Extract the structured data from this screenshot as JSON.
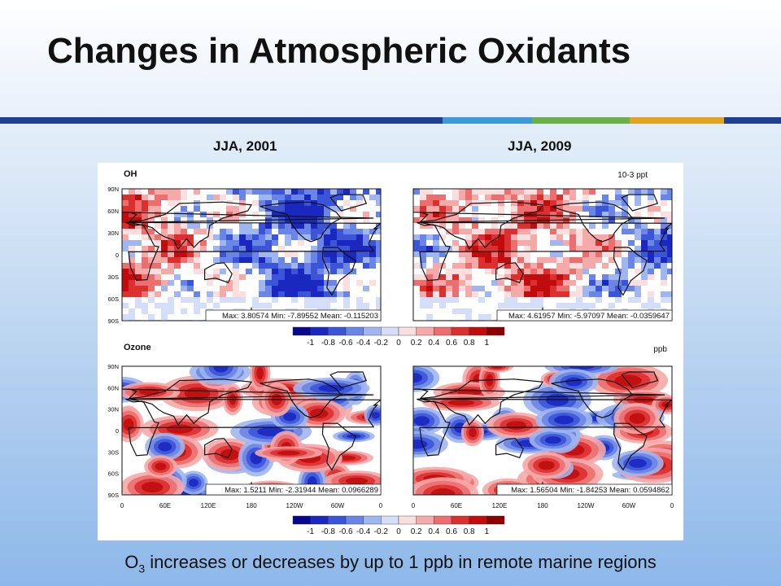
{
  "slide": {
    "title": "Changes in Atmospheric Oxidants",
    "caption_main": "O",
    "caption_sub": "3",
    "caption_rest": " increases or decreases by up to 1 ppb in remote marine regions",
    "rule_colors": [
      "#1f3f8f",
      "#3c9ad8",
      "#6cae4a",
      "#e2a321",
      "#1f3f8f"
    ]
  },
  "columns": [
    "JJA, 2001",
    "JJA, 2009"
  ],
  "figure": {
    "rows": [
      {
        "label": "OH",
        "unit": "10-3 ppt",
        "unit_base": "10",
        "unit_exp": "-3",
        "unit_tail": " ppt",
        "stats": [
          "Max: 3.80574  Min: -7.89552  Mean: -0.115203",
          "Max: 4.61957  Min: -5.97097  Mean: -0.0359647"
        ]
      },
      {
        "label": "Ozone",
        "unit": "ppb",
        "stats": [
          "Max: 1.5211  Min: -2.31944  Mean: 0.0966289",
          "Max: 1.56504  Min: -1.84253  Mean: 0.0594862"
        ]
      }
    ],
    "lat_ticks": [
      "90N",
      "60N",
      "30N",
      "0",
      "30S",
      "60S",
      "90S"
    ],
    "lon_ticks": [
      "0",
      "60E",
      "120E",
      "180",
      "120W",
      "60W",
      "0"
    ],
    "colorbar": {
      "ticks": [
        "-1",
        "-0.8",
        "-0.6",
        "-0.4",
        "-0.2",
        "0",
        "0.2",
        "0.4",
        "0.6",
        "0.8",
        "1"
      ],
      "colors": [
        "#08088f",
        "#1a28c0",
        "#3c55d8",
        "#6a85e6",
        "#a0b6f0",
        "#d4def8",
        "#fbdede",
        "#f5a9a9",
        "#ec6f6f",
        "#dc3030",
        "#c00c0c",
        "#8a0000"
      ]
    }
  }
}
